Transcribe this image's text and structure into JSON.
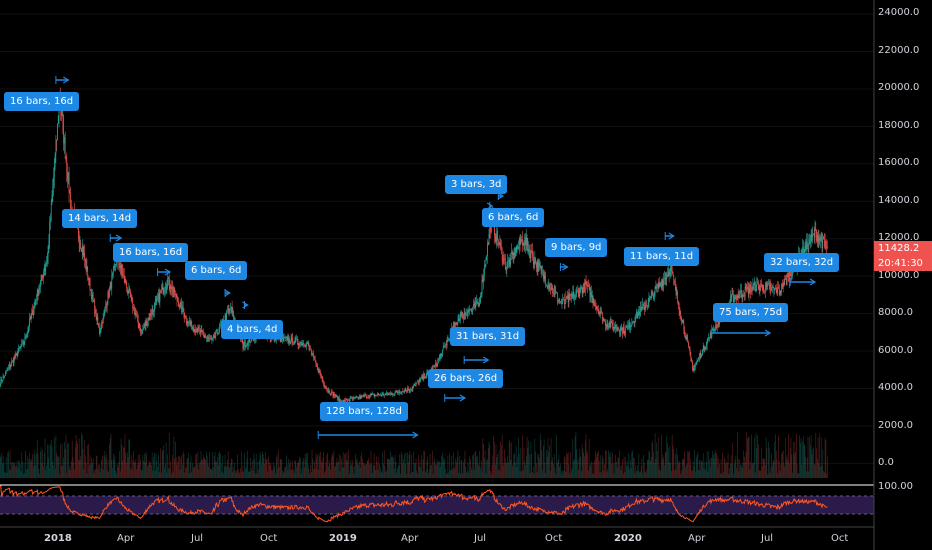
{
  "axis": {
    "y_ticks": [
      "24000.0",
      "22000.0",
      "20000.0",
      "18000.0",
      "16000.0",
      "14000.0",
      "12000.0",
      "10000.0",
      "8000.0",
      "6000.0",
      "4000.0",
      "2000.0",
      "0.0"
    ],
    "rsi_tick": "100.00",
    "x_ticks": [
      {
        "label": "2018",
        "bold": true
      },
      {
        "label": "Apr",
        "bold": false
      },
      {
        "label": "Jul",
        "bold": false
      },
      {
        "label": "Oct",
        "bold": false
      },
      {
        "label": "2019",
        "bold": true
      },
      {
        "label": "Apr",
        "bold": false
      },
      {
        "label": "Jul",
        "bold": false
      },
      {
        "label": "Oct",
        "bold": false
      },
      {
        "label": "2020",
        "bold": true
      },
      {
        "label": "Apr",
        "bold": false
      },
      {
        "label": "Jul",
        "bold": false
      },
      {
        "label": "Oct",
        "bold": false
      }
    ]
  },
  "price_badge": {
    "price": "11428.2",
    "countdown": "20:41:30",
    "color": "#ef5350"
  },
  "annotations": [
    {
      "label": "16 bars, 16d"
    },
    {
      "label": "14 bars, 14d"
    },
    {
      "label": "16 bars, 16d"
    },
    {
      "label": "6 bars, 6d"
    },
    {
      "label": "4 bars, 4d"
    },
    {
      "label": "128 bars, 128d"
    },
    {
      "label": "3 bars, 3d"
    },
    {
      "label": "6 bars, 6d"
    },
    {
      "label": "31 bars, 31d"
    },
    {
      "label": "26 bars, 26d"
    },
    {
      "label": "9 bars, 9d"
    },
    {
      "label": "11 bars, 11d"
    },
    {
      "label": "75 bars, 75d"
    },
    {
      "label": "32 bars, 32d"
    }
  ],
  "colors": {
    "up": "#26a69a",
    "down": "#ef5350",
    "rsi": "#ff5722",
    "rsi_band": "#2a1b4a",
    "annotation": "#1e88e5"
  },
  "chart_data": {
    "type": "candlestick",
    "title": "",
    "ylim": [
      -1000,
      24500
    ],
    "x_range": [
      "2017-10-01",
      "2020-10-31"
    ],
    "series": [
      {
        "values": [
          [
            "2017-10-01",
            4300
          ],
          [
            "2017-11-01",
            6500
          ],
          [
            "2017-12-01",
            11000
          ],
          [
            "2017-12-17",
            19500
          ],
          [
            "2018-01-01",
            13500
          ],
          [
            "2018-01-15",
            11500
          ],
          [
            "2018-02-06",
            7000
          ],
          [
            "2018-03-01",
            11000
          ],
          [
            "2018-04-01",
            7000
          ],
          [
            "2018-05-05",
            9800
          ],
          [
            "2018-06-01",
            7500
          ],
          [
            "2018-07-01",
            6500
          ],
          [
            "2018-07-25",
            8300
          ],
          [
            "2018-08-10",
            6300
          ],
          [
            "2018-09-01",
            7000
          ],
          [
            "2018-10-01",
            6600
          ],
          [
            "2018-11-01",
            6400
          ],
          [
            "2018-11-25",
            4000
          ],
          [
            "2018-12-15",
            3300
          ],
          [
            "2019-01-15",
            3600
          ],
          [
            "2019-02-15",
            3700
          ],
          [
            "2019-03-15",
            4000
          ],
          [
            "2019-04-15",
            5200
          ],
          [
            "2019-05-15",
            7800
          ],
          [
            "2019-06-10",
            8500
          ],
          [
            "2019-06-26",
            13000
          ],
          [
            "2019-07-15",
            10500
          ],
          [
            "2019-08-06",
            12000
          ],
          [
            "2019-09-01",
            10000
          ],
          [
            "2019-09-25",
            8500
          ],
          [
            "2019-10-26",
            9500
          ],
          [
            "2019-11-20",
            7500
          ],
          [
            "2019-12-15",
            7100
          ],
          [
            "2020-01-15",
            8700
          ],
          [
            "2020-02-12",
            10400
          ],
          [
            "2020-03-12",
            5000
          ],
          [
            "2020-04-01",
            6700
          ],
          [
            "2020-05-01",
            8800
          ],
          [
            "2020-06-01",
            9500
          ],
          [
            "2020-07-01",
            9200
          ],
          [
            "2020-07-27",
            11000
          ],
          [
            "2020-08-17",
            12300
          ],
          [
            "2020-09-01",
            11428
          ]
        ]
      }
    ]
  }
}
